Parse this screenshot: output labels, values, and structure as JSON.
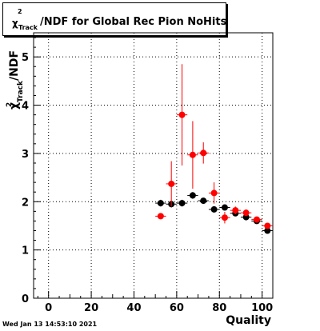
{
  "title": {
    "symbol": "χ",
    "superscript": "2",
    "subscript": "Track",
    "text": "/NDF for Global Rec Pion NoHits"
  },
  "footer": "Wed Jan 13 14:53:10 2021",
  "colors": {
    "black_series": "#000000",
    "red_series": "#ff0000",
    "grid": "#000000"
  },
  "chart_data": {
    "type": "scatter",
    "xlabel": "Quality",
    "ylabel": "χ²_Track/NDF",
    "xlim": [
      -7,
      105
    ],
    "ylim": [
      0,
      5.5
    ],
    "x_ticks": [
      0,
      20,
      40,
      60,
      80,
      100
    ],
    "y_ticks": [
      0,
      1,
      2,
      3,
      4,
      5
    ],
    "grid": true,
    "series": [
      {
        "color": "#000000",
        "x": [
          52.5,
          57.5,
          62.5,
          67.5,
          72.5,
          77.5,
          82.5,
          87.5,
          92.5,
          97.5,
          102.5
        ],
        "y": [
          1.97,
          1.95,
          1.97,
          2.13,
          2.02,
          1.84,
          1.88,
          1.76,
          1.68,
          1.6,
          1.4
        ],
        "yerr": [
          0.07,
          0.07,
          0.07,
          0.07,
          0.06,
          0.06,
          0.06,
          0.05,
          0.05,
          0.05,
          0.05
        ]
      },
      {
        "color": "#ff0000",
        "x": [
          52.5,
          57.5,
          62.5,
          67.5,
          72.5,
          77.5,
          82.5,
          87.5,
          92.5,
          97.5,
          102.5
        ],
        "y": [
          1.7,
          2.37,
          3.8,
          2.97,
          3.01,
          2.18,
          1.67,
          1.82,
          1.77,
          1.63,
          1.5
        ],
        "yerr": [
          0.05,
          0.47,
          1.05,
          0.7,
          0.22,
          0.22,
          0.12,
          0.08,
          0.07,
          0.06,
          0.05
        ]
      }
    ]
  }
}
